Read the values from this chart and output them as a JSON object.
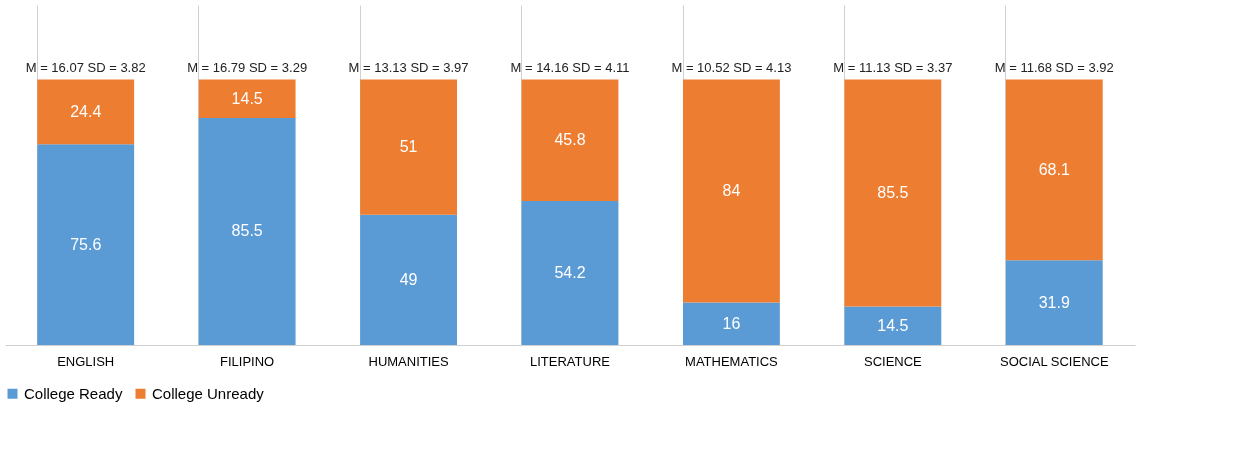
{
  "chart_data": {
    "type": "bar",
    "stacked": true,
    "categories": [
      "ENGLISH",
      "FILIPINO",
      "HUMANITIES",
      "LITERATURE",
      "MATHEMATICS",
      "SCIENCE",
      "SOCIAL SCIENCE"
    ],
    "series": [
      {
        "name": "College Ready",
        "color": "#5b9bd5",
        "values": [
          75.6,
          85.5,
          49,
          54.2,
          16,
          14.5,
          31.9
        ]
      },
      {
        "name": "College Unready",
        "color": "#ed7d31",
        "values": [
          24.4,
          14.5,
          51,
          45.8,
          84,
          85.5,
          68.1
        ]
      }
    ],
    "data_labels": true,
    "legend": "bottom",
    "grid": "x",
    "annotations": [
      {
        "text": "M = 16.07 SD = 3.82",
        "x": "ENGLISH",
        "y": 100
      },
      {
        "text": "M = 16.79 SD = 3.29",
        "x": "FILIPINO",
        "y": 100
      },
      {
        "text": "M = 13.13 SD = 3.97",
        "x": "HUMANITIES",
        "y": 100
      },
      {
        "text": "M = 14.16 SD = 4.11",
        "x": "LITERATURE",
        "y": 100
      },
      {
        "text": "M = 10.52 SD = 4.13",
        "x": "MATHEMATICS",
        "y": 100
      },
      {
        "text": "M = 11.13 SD = 3.37",
        "x": "SCIENCE",
        "y": 100
      },
      {
        "text": "M = 11.68 SD = 3.92",
        "x": "SOCIAL SCIENCE",
        "y": 100
      }
    ]
  }
}
